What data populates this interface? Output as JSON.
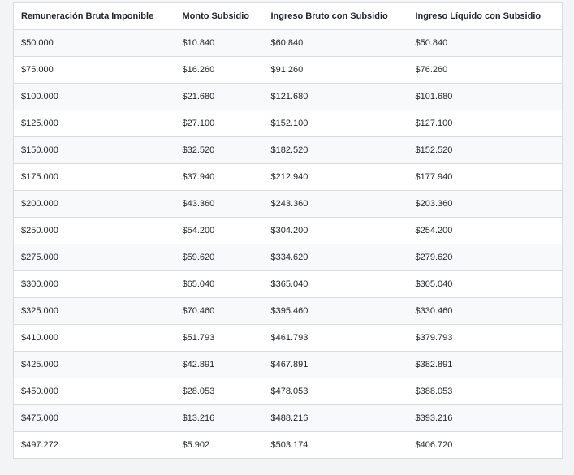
{
  "table": {
    "headers": [
      "Remuneración Bruta Imponible",
      "Monto Subsidio",
      "Ingreso Bruto con Subsidio",
      "Ingreso Líquido con Subsidio"
    ],
    "rows": [
      [
        "$50.000",
        "$10.840",
        "$60.840",
        "$50.840"
      ],
      [
        "$75.000",
        "$16.260",
        "$91.260",
        "$76.260"
      ],
      [
        "$100.000",
        "$21.680",
        "$121.680",
        "$101.680"
      ],
      [
        "$125.000",
        "$27.100",
        "$152.100",
        "$127.100"
      ],
      [
        "$150.000",
        "$32.520",
        "$182.520",
        "$152.520"
      ],
      [
        "$175.000",
        "$37.940",
        "$212.940",
        "$177.940"
      ],
      [
        "$200.000",
        "$43.360",
        "$243.360",
        "$203.360"
      ],
      [
        "$250.000",
        "$54.200",
        "$304.200",
        "$254.200"
      ],
      [
        "$275.000",
        "$59.620",
        "$334.620",
        "$279.620"
      ],
      [
        "$300.000",
        "$65.040",
        "$365.040",
        "$305.040"
      ],
      [
        "$325.000",
        "$70.460",
        "$395.460",
        "$330.460"
      ],
      [
        "$410.000",
        "$51.793",
        "$461.793",
        "$379.793"
      ],
      [
        "$425.000",
        "$42.891",
        "$467.891",
        "$382.891"
      ],
      [
        "$450.000",
        "$28.053",
        "$478.053",
        "$388.053"
      ],
      [
        "$475.000",
        "$13.216",
        "$488.216",
        "$393.216"
      ],
      [
        "$497.272",
        "$5.902",
        "$503.174",
        "$406.720"
      ]
    ]
  }
}
